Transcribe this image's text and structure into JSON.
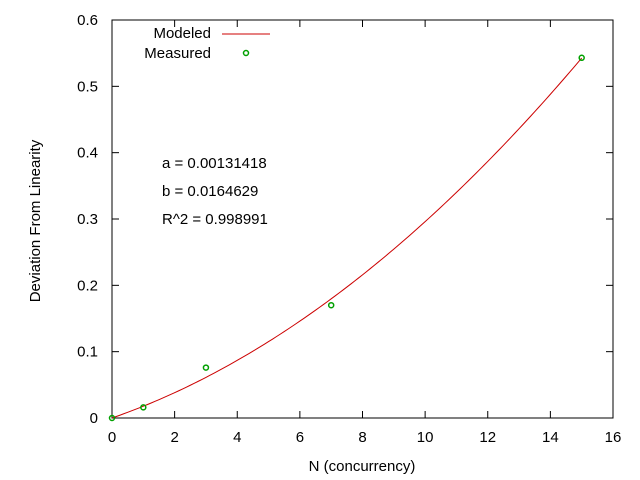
{
  "chart_data": {
    "type": "scatter",
    "title": "",
    "xlabel": "N (concurrency)",
    "ylabel": "Deviation From Linearity",
    "xlim": [
      0,
      16
    ],
    "ylim": [
      0,
      0.6
    ],
    "xticks": [
      "0",
      "2",
      "4",
      "6",
      "8",
      "10",
      "12",
      "14",
      "16"
    ],
    "yticks": [
      "0",
      "0.1",
      "0.2",
      "0.3",
      "0.4",
      "0.5",
      "0.6"
    ],
    "grid": false,
    "legend_position": "top-left",
    "series": [
      {
        "name": "Modeled",
        "kind": "line",
        "color": "#cc0000",
        "x_range": [
          0,
          15
        ],
        "model": {
          "a": 0.00131418,
          "b": 0.0164629
        }
      },
      {
        "name": "Measured",
        "kind": "points",
        "color": "#00a000",
        "marker": "circle",
        "points": [
          {
            "x": 0,
            "y": 0.0
          },
          {
            "x": 1,
            "y": 0.016
          },
          {
            "x": 3,
            "y": 0.076
          },
          {
            "x": 7,
            "y": 0.17
          },
          {
            "x": 15,
            "y": 0.543
          }
        ]
      }
    ],
    "annotations": [
      "a = 0.00131418",
      "b = 0.0164629",
      "R^2 = 0.998991"
    ]
  }
}
